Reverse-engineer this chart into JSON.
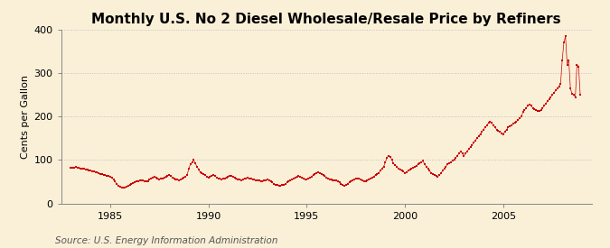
{
  "title": "Monthly U.S. No 2 Diesel Wholesale/Resale Price by Refiners",
  "ylabel": "Cents per Gallon",
  "source": "Source: U.S. Energy Information Administration",
  "bg_color": "#FAF0D8",
  "line_color": "#CC0000",
  "marker_color": "#CC0000",
  "ylim": [
    0,
    400
  ],
  "yticks": [
    0,
    100,
    200,
    300,
    400
  ],
  "xticks": [
    1985,
    1990,
    1995,
    2000,
    2005
  ],
  "xmin": 1982.5,
  "xmax": 2009.5,
  "grid_color": "#BBBBBB",
  "title_fontsize": 11,
  "ylabel_fontsize": 8,
  "source_fontsize": 7.5,
  "values": [
    83,
    82,
    83,
    84,
    83,
    82,
    81,
    80,
    79,
    78,
    77,
    76,
    75,
    74,
    73,
    72,
    71,
    70,
    68,
    67,
    66,
    65,
    64,
    63,
    62,
    60,
    55,
    50,
    45,
    40,
    38,
    37,
    36,
    37,
    38,
    40,
    42,
    44,
    46,
    48,
    50,
    50,
    52,
    53,
    52,
    51,
    50,
    50,
    55,
    58,
    60,
    62,
    60,
    58,
    56,
    57,
    58,
    60,
    62,
    64,
    65,
    63,
    60,
    58,
    56,
    55,
    54,
    55,
    57,
    60,
    62,
    65,
    80,
    90,
    95,
    100,
    92,
    85,
    78,
    72,
    70,
    68,
    65,
    62,
    60,
    62,
    64,
    65,
    63,
    60,
    58,
    57,
    56,
    57,
    58,
    60,
    62,
    63,
    64,
    62,
    60,
    58,
    56,
    55,
    54,
    55,
    57,
    58,
    59,
    58,
    57,
    56,
    55,
    54,
    53,
    52,
    50,
    50,
    52,
    54,
    55,
    53,
    50,
    48,
    45,
    43,
    42,
    41,
    40,
    42,
    43,
    45,
    48,
    50,
    52,
    55,
    57,
    60,
    62,
    63,
    62,
    60,
    58,
    56,
    55,
    57,
    60,
    62,
    65,
    67,
    70,
    72,
    70,
    68,
    65,
    63,
    60,
    58,
    56,
    55,
    54,
    53,
    52,
    50,
    48,
    45,
    43,
    40,
    42,
    45,
    48,
    50,
    52,
    55,
    57,
    58,
    57,
    55,
    53,
    50,
    50,
    52,
    55,
    58,
    60,
    62,
    65,
    67,
    70,
    75,
    80,
    85,
    95,
    105,
    110,
    108,
    100,
    92,
    88,
    85,
    80,
    78,
    75,
    73,
    70,
    72,
    75,
    78,
    80,
    82,
    85,
    87,
    90,
    93,
    95,
    98,
    90,
    85,
    80,
    75,
    70,
    68,
    65,
    63,
    62,
    65,
    70,
    75,
    80,
    85,
    90,
    92,
    95,
    98,
    100,
    105,
    110,
    115,
    120,
    115,
    110,
    115,
    120,
    125,
    130,
    135,
    140,
    145,
    150,
    155,
    160,
    165,
    170,
    175,
    180,
    185,
    188,
    185,
    180,
    175,
    170,
    168,
    165,
    162,
    160,
    165,
    170,
    175,
    178,
    180,
    183,
    185,
    188,
    192,
    196,
    200,
    210,
    215,
    220,
    225,
    228,
    225,
    220,
    218,
    215,
    213,
    212,
    215,
    220,
    225,
    230,
    235,
    240,
    245,
    250,
    255,
    260,
    265,
    270,
    275,
    330,
    370,
    385,
    320,
    330,
    265,
    252,
    250,
    245,
    320,
    315,
    250
  ],
  "start_year": 1983,
  "start_month": 1
}
